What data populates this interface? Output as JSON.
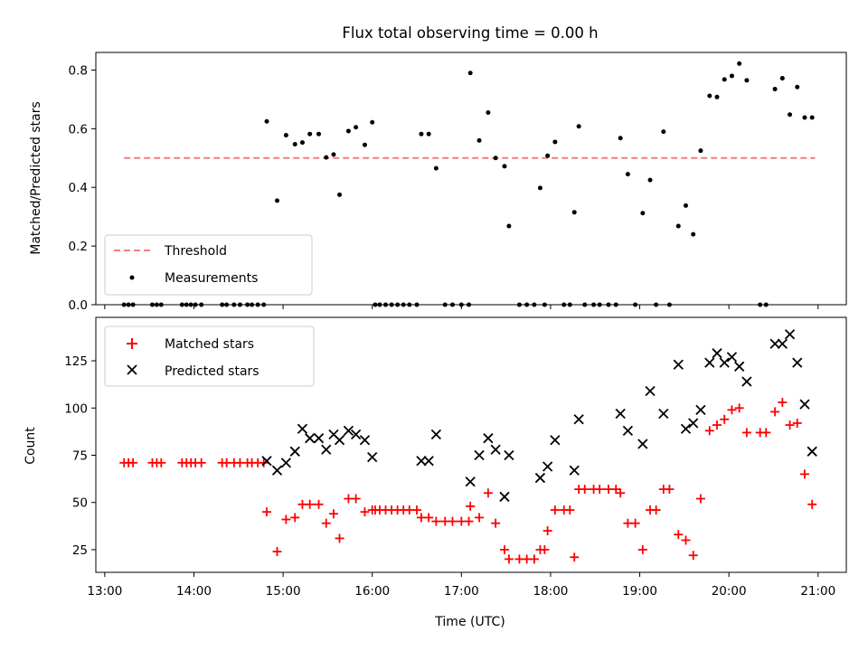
{
  "chart_data": [
    {
      "type": "scatter",
      "panel": "top",
      "title": "Flux total observing time = 0.00 h",
      "xlabel": "",
      "ylabel": "Matched/Predicted stars",
      "xlim": [
        "12:54",
        "21:19"
      ],
      "ylim": [
        0,
        0.86
      ],
      "yticks": [
        0.0,
        0.2,
        0.4,
        0.6,
        0.8
      ],
      "ytick_labels": [
        "0.0",
        "0.2",
        "0.4",
        "0.6",
        "0.8"
      ],
      "legend_position": "lower-left",
      "grid": false,
      "threshold": {
        "name": "Threshold",
        "y": 0.5,
        "x_range": [
          "13:13",
          "20:58"
        ],
        "color": "#f47c7c",
        "style": "dashed"
      },
      "series": [
        {
          "name": "Measurements",
          "color": "#000000",
          "marker": "dot",
          "points": [
            [
              "13:13",
              0
            ],
            [
              "13:16",
              0
            ],
            [
              "13:19",
              0
            ],
            [
              "13:32",
              0
            ],
            [
              "13:35",
              0
            ],
            [
              "13:38",
              0
            ],
            [
              "13:52",
              0
            ],
            [
              "13:55",
              0
            ],
            [
              "13:58",
              0
            ],
            [
              "14:01",
              0
            ],
            [
              "14:05",
              0
            ],
            [
              "14:19",
              0
            ],
            [
              "14:22",
              0
            ],
            [
              "14:27",
              0
            ],
            [
              "14:31",
              0
            ],
            [
              "14:36",
              0
            ],
            [
              "14:39",
              0
            ],
            [
              "14:43",
              0
            ],
            [
              "14:47",
              0
            ],
            [
              "14:49",
              0.625
            ],
            [
              "14:56",
              0.355
            ],
            [
              "15:02",
              0.578
            ],
            [
              "15:08",
              0.547
            ],
            [
              "15:13",
              0.553
            ],
            [
              "15:18",
              0.582
            ],
            [
              "15:24",
              0.582
            ],
            [
              "15:29",
              0.502
            ],
            [
              "15:34",
              0.512
            ],
            [
              "15:38",
              0.375
            ],
            [
              "15:44",
              0.592
            ],
            [
              "15:49",
              0.605
            ],
            [
              "15:55",
              0.545
            ],
            [
              "16:00",
              0.622
            ],
            [
              "16:02",
              0
            ],
            [
              "16:05",
              0
            ],
            [
              "16:09",
              0
            ],
            [
              "16:13",
              0
            ],
            [
              "16:17",
              0
            ],
            [
              "16:21",
              0
            ],
            [
              "16:25",
              0
            ],
            [
              "16:30",
              0
            ],
            [
              "16:33",
              0.582
            ],
            [
              "16:38",
              0.582
            ],
            [
              "16:43",
              0.465
            ],
            [
              "16:49",
              0
            ],
            [
              "16:54",
              0
            ],
            [
              "17:00",
              0
            ],
            [
              "17:05",
              0
            ],
            [
              "17:06",
              0.79
            ],
            [
              "17:12",
              0.56
            ],
            [
              "17:18",
              0.655
            ],
            [
              "17:23",
              0.5
            ],
            [
              "17:29",
              0.472
            ],
            [
              "17:32",
              0.268
            ],
            [
              "17:39",
              0
            ],
            [
              "17:44",
              0
            ],
            [
              "17:49",
              0
            ],
            [
              "17:53",
              0.398
            ],
            [
              "17:56",
              0
            ],
            [
              "17:58",
              0.508
            ],
            [
              "18:03",
              0.555
            ],
            [
              "18:09",
              0
            ],
            [
              "18:13",
              0
            ],
            [
              "18:16",
              0.315
            ],
            [
              "18:19",
              0.608
            ],
            [
              "18:23",
              0
            ],
            [
              "18:29",
              0
            ],
            [
              "18:33",
              0
            ],
            [
              "18:39",
              0
            ],
            [
              "18:44",
              0
            ],
            [
              "18:47",
              0.568
            ],
            [
              "18:52",
              0.445
            ],
            [
              "18:57",
              0
            ],
            [
              "19:02",
              0.312
            ],
            [
              "19:07",
              0.425
            ],
            [
              "19:11",
              0
            ],
            [
              "19:16",
              0.59
            ],
            [
              "19:20",
              0
            ],
            [
              "19:26",
              0.268
            ],
            [
              "19:31",
              0.338
            ],
            [
              "19:36",
              0.24
            ],
            [
              "19:41",
              0.525
            ],
            [
              "19:47",
              0.712
            ],
            [
              "19:52",
              0.708
            ],
            [
              "19:57",
              0.768
            ],
            [
              "20:02",
              0.78
            ],
            [
              "20:07",
              0.822
            ],
            [
              "20:12",
              0.765
            ],
            [
              "20:21",
              0
            ],
            [
              "20:25",
              0
            ],
            [
              "20:31",
              0.735
            ],
            [
              "20:36",
              0.772
            ],
            [
              "20:41",
              0.648
            ],
            [
              "20:46",
              0.742
            ],
            [
              "20:51",
              0.638
            ],
            [
              "20:56",
              0.638
            ]
          ]
        }
      ]
    },
    {
      "type": "scatter",
      "panel": "bottom",
      "title": "",
      "xlabel": "Time (UTC)",
      "ylabel": "Count",
      "xlim": [
        "12:54",
        "21:19"
      ],
      "xticks": [
        "13:00",
        "14:00",
        "15:00",
        "16:00",
        "17:00",
        "18:00",
        "19:00",
        "20:00",
        "21:00"
      ],
      "ylim": [
        13,
        148
      ],
      "yticks": [
        25,
        50,
        75,
        100,
        125
      ],
      "ytick_labels": [
        "25",
        "50",
        "75",
        "100",
        "125"
      ],
      "legend_position": "upper-left",
      "grid": false,
      "series": [
        {
          "name": "Matched stars",
          "color": "#ff0000",
          "marker": "plus",
          "points": [
            [
              "13:13",
              71
            ],
            [
              "13:16",
              71
            ],
            [
              "13:19",
              71
            ],
            [
              "13:32",
              71
            ],
            [
              "13:35",
              71
            ],
            [
              "13:38",
              71
            ],
            [
              "13:52",
              71
            ],
            [
              "13:55",
              71
            ],
            [
              "13:58",
              71
            ],
            [
              "14:01",
              71
            ],
            [
              "14:05",
              71
            ],
            [
              "14:19",
              71
            ],
            [
              "14:22",
              71
            ],
            [
              "14:27",
              71
            ],
            [
              "14:31",
              71
            ],
            [
              "14:36",
              71
            ],
            [
              "14:39",
              71
            ],
            [
              "14:43",
              71
            ],
            [
              "14:47",
              71
            ],
            [
              "14:49",
              45
            ],
            [
              "14:56",
              24
            ],
            [
              "15:02",
              41
            ],
            [
              "15:08",
              42
            ],
            [
              "15:13",
              49
            ],
            [
              "15:18",
              49
            ],
            [
              "15:24",
              49
            ],
            [
              "15:29",
              39
            ],
            [
              "15:34",
              44
            ],
            [
              "15:38",
              31
            ],
            [
              "15:44",
              52
            ],
            [
              "15:49",
              52
            ],
            [
              "15:55",
              45
            ],
            [
              "16:00",
              46
            ],
            [
              "16:02",
              46
            ],
            [
              "16:05",
              46
            ],
            [
              "16:09",
              46
            ],
            [
              "16:13",
              46
            ],
            [
              "16:17",
              46
            ],
            [
              "16:21",
              46
            ],
            [
              "16:25",
              46
            ],
            [
              "16:30",
              46
            ],
            [
              "16:33",
              42
            ],
            [
              "16:38",
              42
            ],
            [
              "16:43",
              40
            ],
            [
              "16:49",
              40
            ],
            [
              "16:54",
              40
            ],
            [
              "17:00",
              40
            ],
            [
              "17:05",
              40
            ],
            [
              "17:06",
              48
            ],
            [
              "17:12",
              42
            ],
            [
              "17:18",
              55
            ],
            [
              "17:23",
              39
            ],
            [
              "17:29",
              25
            ],
            [
              "17:32",
              20
            ],
            [
              "17:39",
              20
            ],
            [
              "17:44",
              20
            ],
            [
              "17:49",
              20
            ],
            [
              "17:53",
              25
            ],
            [
              "17:56",
              25
            ],
            [
              "17:58",
              35
            ],
            [
              "18:03",
              46
            ],
            [
              "18:09",
              46
            ],
            [
              "18:13",
              46
            ],
            [
              "18:16",
              21
            ],
            [
              "18:19",
              57
            ],
            [
              "18:23",
              57
            ],
            [
              "18:29",
              57
            ],
            [
              "18:33",
              57
            ],
            [
              "18:39",
              57
            ],
            [
              "18:44",
              57
            ],
            [
              "18:47",
              55
            ],
            [
              "18:52",
              39
            ],
            [
              "18:57",
              39
            ],
            [
              "19:02",
              25
            ],
            [
              "19:07",
              46
            ],
            [
              "19:11",
              46
            ],
            [
              "19:16",
              57
            ],
            [
              "19:20",
              57
            ],
            [
              "19:26",
              33
            ],
            [
              "19:31",
              30
            ],
            [
              "19:36",
              22
            ],
            [
              "19:41",
              52
            ],
            [
              "19:47",
              88
            ],
            [
              "19:52",
              91
            ],
            [
              "19:57",
              94
            ],
            [
              "20:02",
              99
            ],
            [
              "20:07",
              100
            ],
            [
              "20:12",
              87
            ],
            [
              "20:21",
              87
            ],
            [
              "20:25",
              87
            ],
            [
              "20:31",
              98
            ],
            [
              "20:36",
              103
            ],
            [
              "20:41",
              91
            ],
            [
              "20:46",
              92
            ],
            [
              "20:51",
              65
            ],
            [
              "20:56",
              49
            ]
          ]
        },
        {
          "name": "Predicted stars",
          "color": "#000000",
          "marker": "x",
          "points": [
            [
              "14:49",
              72
            ],
            [
              "14:56",
              67
            ],
            [
              "15:02",
              71
            ],
            [
              "15:08",
              77
            ],
            [
              "15:13",
              89
            ],
            [
              "15:18",
              84
            ],
            [
              "15:24",
              84
            ],
            [
              "15:29",
              78
            ],
            [
              "15:34",
              86
            ],
            [
              "15:38",
              83
            ],
            [
              "15:44",
              88
            ],
            [
              "15:49",
              86
            ],
            [
              "15:55",
              83
            ],
            [
              "16:00",
              74
            ],
            [
              "16:33",
              72
            ],
            [
              "16:38",
              72
            ],
            [
              "16:43",
              86
            ],
            [
              "17:06",
              61
            ],
            [
              "17:12",
              75
            ],
            [
              "17:18",
              84
            ],
            [
              "17:23",
              78
            ],
            [
              "17:29",
              53
            ],
            [
              "17:32",
              75
            ],
            [
              "17:53",
              63
            ],
            [
              "17:58",
              69
            ],
            [
              "18:03",
              83
            ],
            [
              "18:16",
              67
            ],
            [
              "18:19",
              94
            ],
            [
              "18:47",
              97
            ],
            [
              "18:52",
              88
            ],
            [
              "19:02",
              81
            ],
            [
              "19:07",
              109
            ],
            [
              "19:16",
              97
            ],
            [
              "19:26",
              123
            ],
            [
              "19:31",
              89
            ],
            [
              "19:36",
              92
            ],
            [
              "19:41",
              99
            ],
            [
              "19:47",
              124
            ],
            [
              "19:52",
              129
            ],
            [
              "19:57",
              124
            ],
            [
              "20:02",
              127
            ],
            [
              "20:07",
              122
            ],
            [
              "20:12",
              114
            ],
            [
              "20:31",
              134
            ],
            [
              "20:36",
              134
            ],
            [
              "20:41",
              139
            ],
            [
              "20:46",
              124
            ],
            [
              "20:51",
              102
            ],
            [
              "20:56",
              77
            ]
          ]
        }
      ]
    }
  ]
}
